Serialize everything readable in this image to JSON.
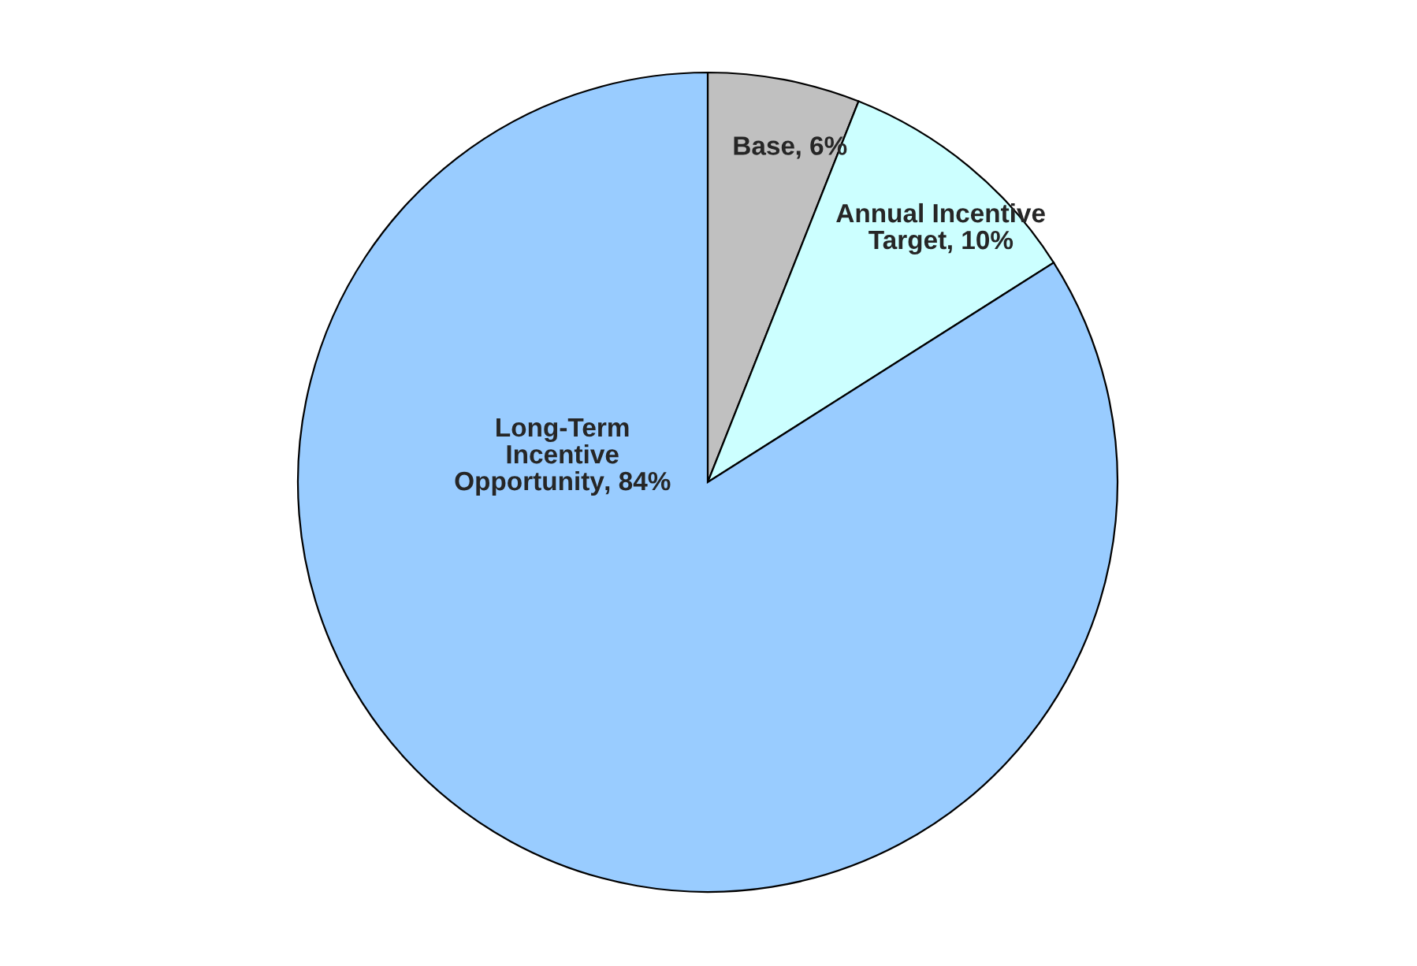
{
  "chart_data": {
    "type": "pie",
    "categories": [
      "Base",
      "Annual Incentive\nTarget",
      "Long-Term\nIncentive\nOpportunity"
    ],
    "values": [
      6,
      10,
      84
    ],
    "colors": [
      "#c0c0c0",
      "#ccffff",
      "#99ccff"
    ],
    "value_labels": [
      ", 6%",
      ", 10%",
      ", 84%"
    ]
  }
}
